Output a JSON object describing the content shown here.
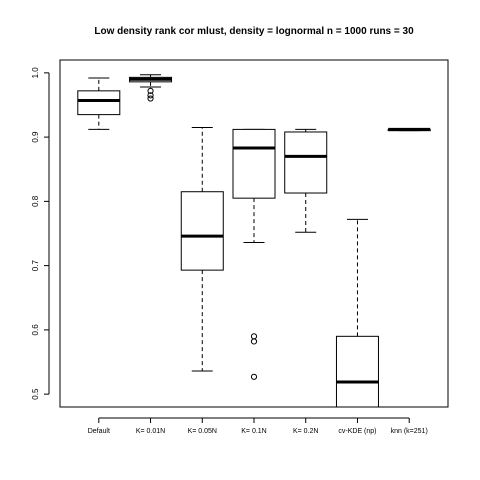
{
  "chart_data": {
    "type": "boxplot",
    "title": "Low density rank cor mlust, density = lognormal n = 1000 runs = 30",
    "xlabel": "",
    "ylabel": "",
    "ylim": [
      0.48,
      1.02
    ],
    "yticks": [
      "0.5",
      "0.6",
      "0.7",
      "0.8",
      "0.9",
      "1.0"
    ],
    "grid": false,
    "categories": [
      "Default",
      "K= 0.01N",
      "K= 0.05N",
      "K= 0.1N",
      "K= 0.2N",
      "cv-KDE (np)",
      "knn (k=251)"
    ],
    "boxes": [
      {
        "min": 0.912,
        "q1": 0.935,
        "median": 0.957,
        "q3": 0.972,
        "max": 0.992,
        "outliers": []
      },
      {
        "min": 0.978,
        "q1": 0.986,
        "median": 0.99,
        "q3": 0.993,
        "max": 0.997,
        "outliers": [
          0.972,
          0.965,
          0.96
        ]
      },
      {
        "min": 0.536,
        "q1": 0.693,
        "median": 0.746,
        "q3": 0.815,
        "max": 0.915,
        "outliers": []
      },
      {
        "min": 0.736,
        "q1": 0.805,
        "median": 0.883,
        "q3": 0.912,
        "max": 0.912,
        "outliers": [
          0.59,
          0.582,
          0.527
        ]
      },
      {
        "min": 0.752,
        "q1": 0.813,
        "median": 0.87,
        "q3": 0.908,
        "max": 0.912,
        "outliers": []
      },
      {
        "min": 0.48,
        "q1": 0.48,
        "median": 0.519,
        "q3": 0.59,
        "max": 0.772,
        "outliers": []
      },
      {
        "min": 0.91,
        "q1": 0.91,
        "median": 0.912,
        "q3": 0.912,
        "max": 0.913,
        "outliers": []
      }
    ]
  }
}
